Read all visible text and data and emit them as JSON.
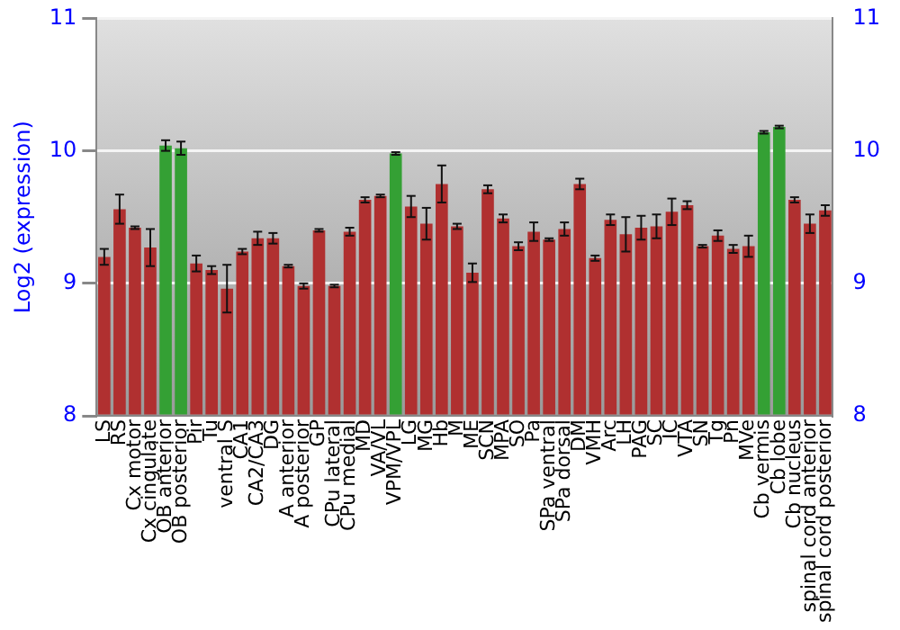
{
  "chart_data": {
    "type": "bar",
    "ylabel": "Log2 (expression)",
    "categories": [
      "LS",
      "RS",
      "Cx motor",
      "Cx cingulate",
      "OB anterior",
      "OB posterior",
      "Pir",
      "Tu",
      "ventral S",
      "CA1",
      "CA2/CA3",
      "DG",
      "A anterior",
      "A posterior",
      "GP",
      "CPu lateral",
      "CPu medial",
      "MD",
      "VA/VL",
      "VPM/VPL",
      "LG",
      "MG",
      "Hb",
      "M",
      "ME",
      "SCN",
      "MPA",
      "SO",
      "Pa",
      "SPa ventral",
      "SPa dorsal",
      "DM",
      "VMH",
      "Arc",
      "LH",
      "PAG",
      "SC",
      "IC",
      "VTA",
      "SN",
      "Tg",
      "Pn",
      "MVe",
      "Cb vermis",
      "Cb lobe",
      "Cb nucleus",
      "spinal cord anterior",
      "spinal cord posterior"
    ],
    "values": [
      9.2,
      9.56,
      9.42,
      9.27,
      10.04,
      10.02,
      9.15,
      9.1,
      8.96,
      9.24,
      9.34,
      9.34,
      9.13,
      8.98,
      9.4,
      8.98,
      9.39,
      9.63,
      9.66,
      9.98,
      9.58,
      9.45,
      9.75,
      9.43,
      9.08,
      9.71,
      9.49,
      9.28,
      9.39,
      9.33,
      9.41,
      9.75,
      9.19,
      9.48,
      9.37,
      9.42,
      9.43,
      9.54,
      9.59,
      9.28,
      9.36,
      9.26,
      9.28,
      10.14,
      10.18,
      9.63,
      9.45,
      9.55
    ],
    "errors": [
      0.06,
      0.11,
      0.01,
      0.14,
      0.04,
      0.05,
      0.06,
      0.03,
      0.18,
      0.02,
      0.05,
      0.04,
      0.01,
      0.02,
      0.01,
      0.01,
      0.03,
      0.02,
      0.01,
      0.01,
      0.08,
      0.12,
      0.14,
      0.02,
      0.07,
      0.03,
      0.03,
      0.03,
      0.07,
      0.01,
      0.05,
      0.04,
      0.02,
      0.04,
      0.13,
      0.09,
      0.09,
      0.1,
      0.03,
      0.01,
      0.04,
      0.03,
      0.08,
      0.01,
      0.01,
      0.02,
      0.07,
      0.04
    ],
    "colors": [
      "#b03030",
      "#b03030",
      "#b03030",
      "#b03030",
      "#34a034",
      "#34a034",
      "#b03030",
      "#b03030",
      "#b03030",
      "#b03030",
      "#b03030",
      "#b03030",
      "#b03030",
      "#b03030",
      "#b03030",
      "#b03030",
      "#b03030",
      "#b03030",
      "#b03030",
      "#34a034",
      "#b03030",
      "#b03030",
      "#b03030",
      "#b03030",
      "#b03030",
      "#b03030",
      "#b03030",
      "#b03030",
      "#b03030",
      "#b03030",
      "#b03030",
      "#b03030",
      "#b03030",
      "#b03030",
      "#b03030",
      "#b03030",
      "#b03030",
      "#b03030",
      "#b03030",
      "#b03030",
      "#b03030",
      "#b03030",
      "#b03030",
      "#34a034",
      "#34a034",
      "#b03030",
      "#b03030",
      "#b03030"
    ],
    "ylim": [
      8,
      11
    ],
    "yticks": [
      8,
      9,
      10,
      11
    ],
    "y2lim": [
      8,
      11
    ],
    "y2ticks": [
      8,
      9,
      10,
      11
    ],
    "grid": "y",
    "legend": false
  }
}
